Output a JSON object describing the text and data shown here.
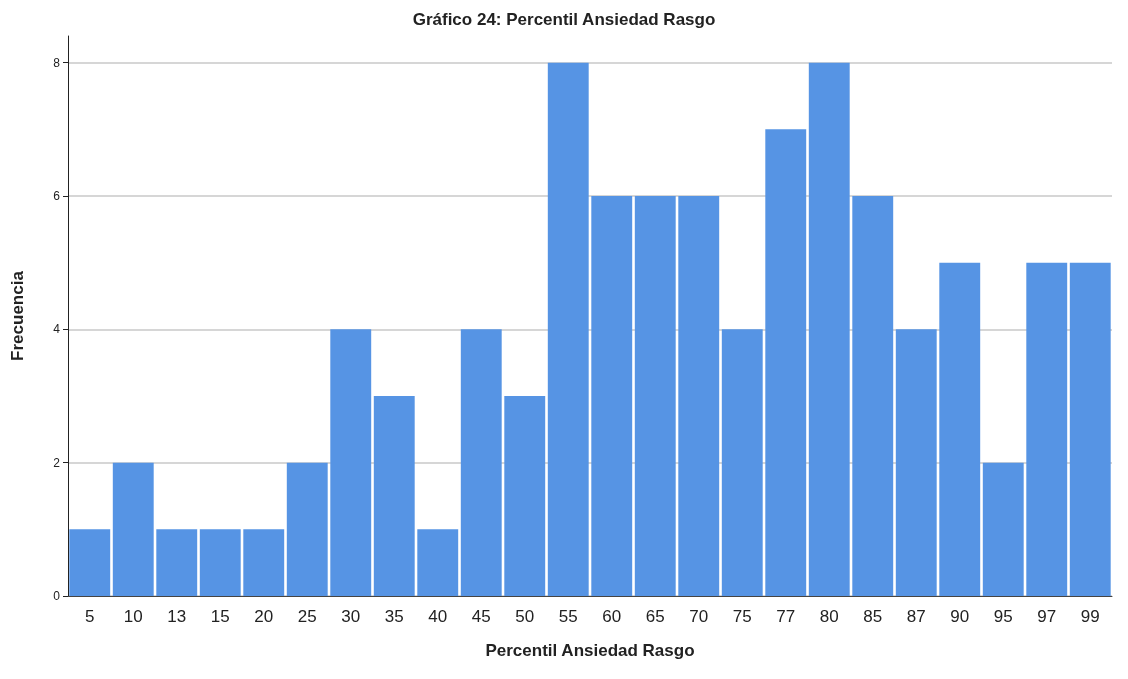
{
  "chart_data": {
    "type": "bar",
    "title": "Gráfico 24: Percentil Ansiedad Rasgo",
    "xlabel": "Percentil Ansiedad Rasgo",
    "ylabel": "Frecuencia",
    "categories": [
      "5",
      "10",
      "13",
      "15",
      "20",
      "25",
      "30",
      "35",
      "40",
      "45",
      "50",
      "55",
      "60",
      "65",
      "70",
      "75",
      "77",
      "80",
      "85",
      "87",
      "90",
      "95",
      "97",
      "99"
    ],
    "values": [
      1,
      2,
      1,
      1,
      1,
      2,
      4,
      3,
      1,
      4,
      3,
      8,
      6,
      6,
      6,
      4,
      7,
      8,
      6,
      4,
      5,
      2,
      5,
      5
    ],
    "color": "#5694e4",
    "ylim": [
      0,
      8.4
    ],
    "yticks": [
      0,
      2,
      4,
      6,
      8
    ],
    "grid": "y"
  }
}
